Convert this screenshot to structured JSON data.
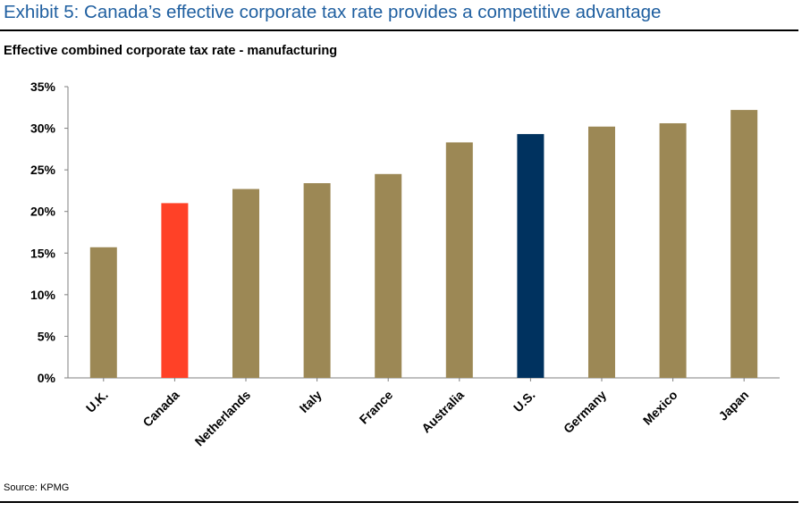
{
  "header": {
    "exhibit_title": "Exhibit 5: Canada’s effective corporate tax rate provides a competitive advantage",
    "chart_title": "Effective combined corporate tax rate - manufacturing"
  },
  "footer": {
    "source": "Source: KPMG"
  },
  "chart_data": {
    "type": "bar",
    "title": "Effective combined corporate tax rate - manufacturing",
    "xlabel": "",
    "ylabel": "",
    "categories": [
      "U.K.",
      "Canada",
      "Netherlands",
      "Italy",
      "France",
      "Australia",
      "U.S.",
      "Germany",
      "Mexico",
      "Japan"
    ],
    "values": [
      15.7,
      21.0,
      22.7,
      23.4,
      24.5,
      28.3,
      29.3,
      30.2,
      30.6,
      32.2
    ],
    "ylim": [
      0,
      35
    ],
    "yticks": [
      0,
      5,
      10,
      15,
      20,
      25,
      30,
      35
    ],
    "ytick_labels": [
      "0%",
      "5%",
      "10%",
      "15%",
      "20%",
      "25%",
      "30%",
      "35%"
    ],
    "colors": {
      "default": "#9c8855",
      "Canada": "#ff4127",
      "U.S.": "#00325f"
    },
    "grid": false,
    "legend": "none"
  }
}
